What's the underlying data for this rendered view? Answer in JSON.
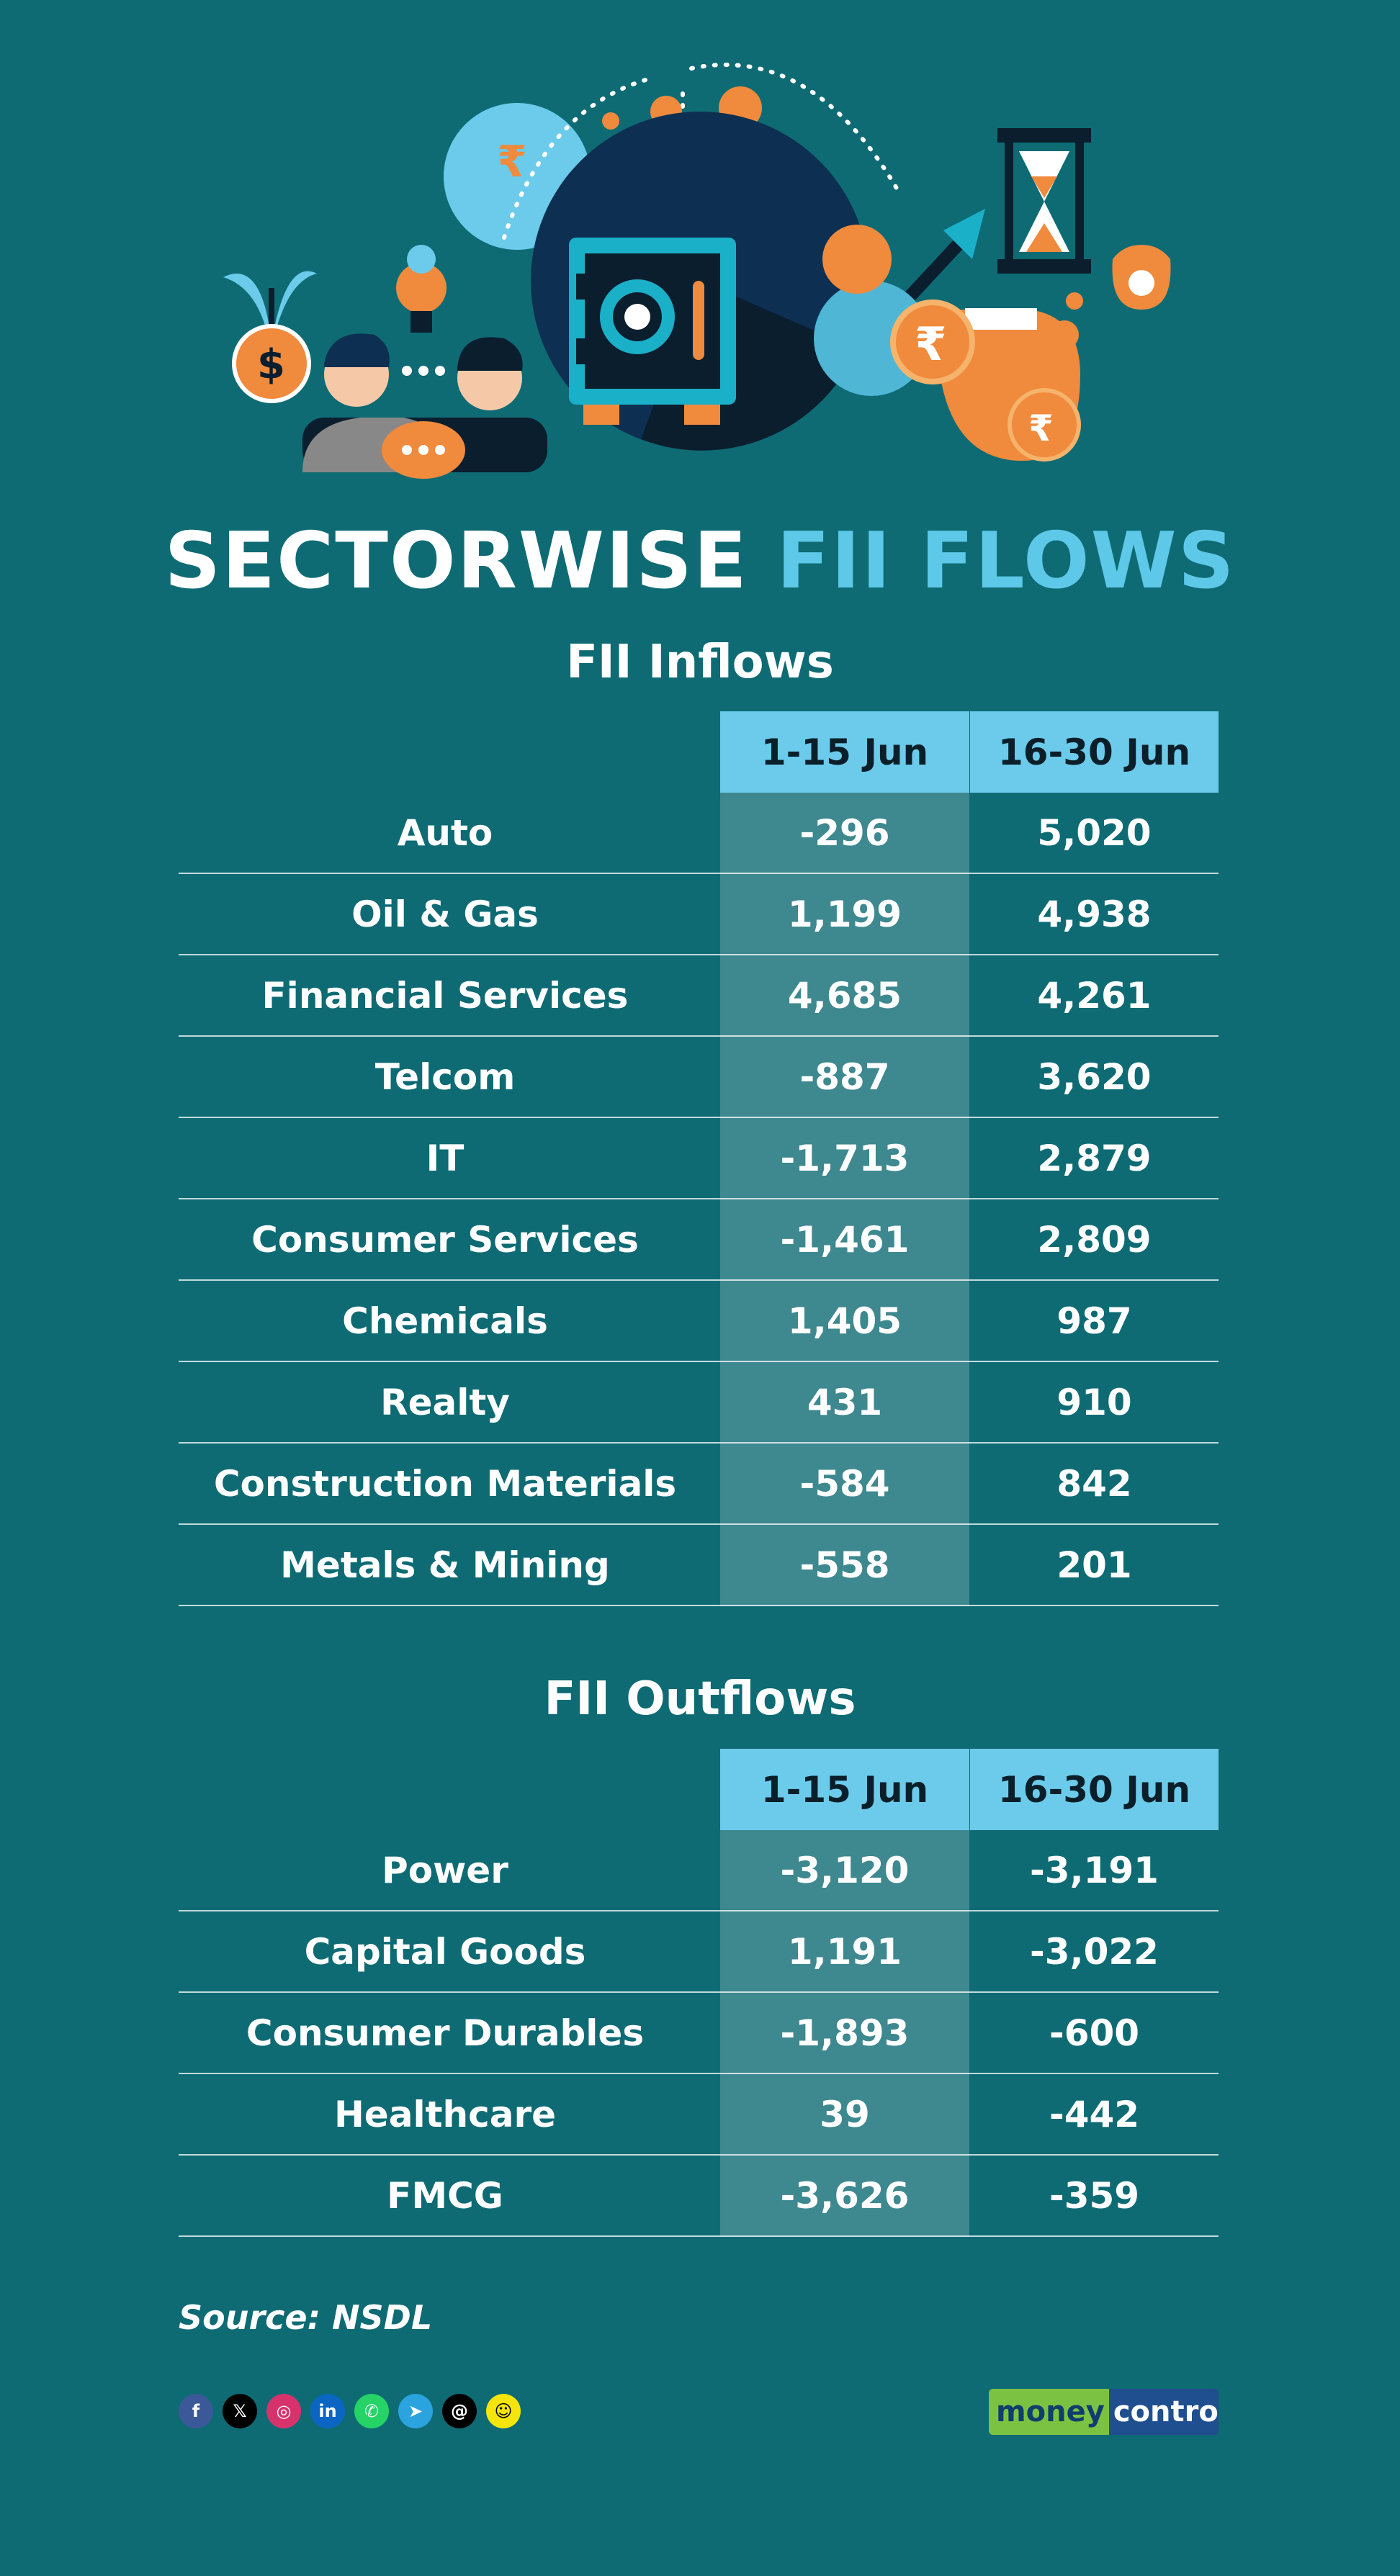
{
  "title": {
    "part1": "SECTORWISE",
    "part2": "FII FLOWS"
  },
  "hero": {
    "safe_number": "5"
  },
  "colors": {
    "background": "#0e6b74",
    "accent": "#5ec8e8",
    "header": "#6ccbea",
    "orange": "#f08a3c"
  },
  "inflows": {
    "title": "FII Inflows",
    "columns": [
      "1-15 Jun",
      "16-30 Jun"
    ],
    "rows": [
      {
        "label": "Auto",
        "v1": "-296",
        "v2": "5,020"
      },
      {
        "label": "Oil & Gas",
        "v1": "1,199",
        "v2": "4,938"
      },
      {
        "label": "Financial Services",
        "v1": "4,685",
        "v2": "4,261"
      },
      {
        "label": "Telcom",
        "v1": "-887",
        "v2": "3,620"
      },
      {
        "label": "IT",
        "v1": "-1,713",
        "v2": "2,879"
      },
      {
        "label": "Consumer Services",
        "v1": "-1,461",
        "v2": "2,809"
      },
      {
        "label": "Chemicals",
        "v1": "1,405",
        "v2": "987"
      },
      {
        "label": "Realty",
        "v1": "431",
        "v2": "910"
      },
      {
        "label": "Construction Materials",
        "v1": "-584",
        "v2": "842"
      },
      {
        "label": "Metals & Mining",
        "v1": "-558",
        "v2": "201"
      }
    ]
  },
  "outflows": {
    "title": "FII Outflows",
    "columns": [
      "1-15 Jun",
      "16-30 Jun"
    ],
    "rows": [
      {
        "label": "Power",
        "v1": "-3,120",
        "v2": "-3,191"
      },
      {
        "label": "Capital Goods",
        "v1": "1,191",
        "v2": "-3,022"
      },
      {
        "label": "Consumer Durables",
        "v1": "-1,893",
        "v2": "-600"
      },
      {
        "label": "Healthcare",
        "v1": "39",
        "v2": "-442"
      },
      {
        "label": "FMCG",
        "v1": "-3,626",
        "v2": "-359"
      }
    ]
  },
  "source": "Source: NSDL",
  "social": [
    {
      "name": "facebook-icon",
      "glyph": "f",
      "color": "#3b5998"
    },
    {
      "name": "x-icon",
      "glyph": "𝕏",
      "color": "#000000"
    },
    {
      "name": "instagram-icon",
      "glyph": "◎",
      "color": "#d6336c"
    },
    {
      "name": "linkedin-icon",
      "glyph": "in",
      "color": "#0a66c2"
    },
    {
      "name": "whatsapp-icon",
      "glyph": "✆",
      "color": "#25d366"
    },
    {
      "name": "telegram-icon",
      "glyph": "➤",
      "color": "#2aa3df"
    },
    {
      "name": "threads-icon",
      "glyph": "@",
      "color": "#000000"
    },
    {
      "name": "snapchat-icon",
      "glyph": "☺",
      "color": "#f5e50c"
    }
  ],
  "logo": {
    "part1": "money",
    "part2": "control"
  }
}
